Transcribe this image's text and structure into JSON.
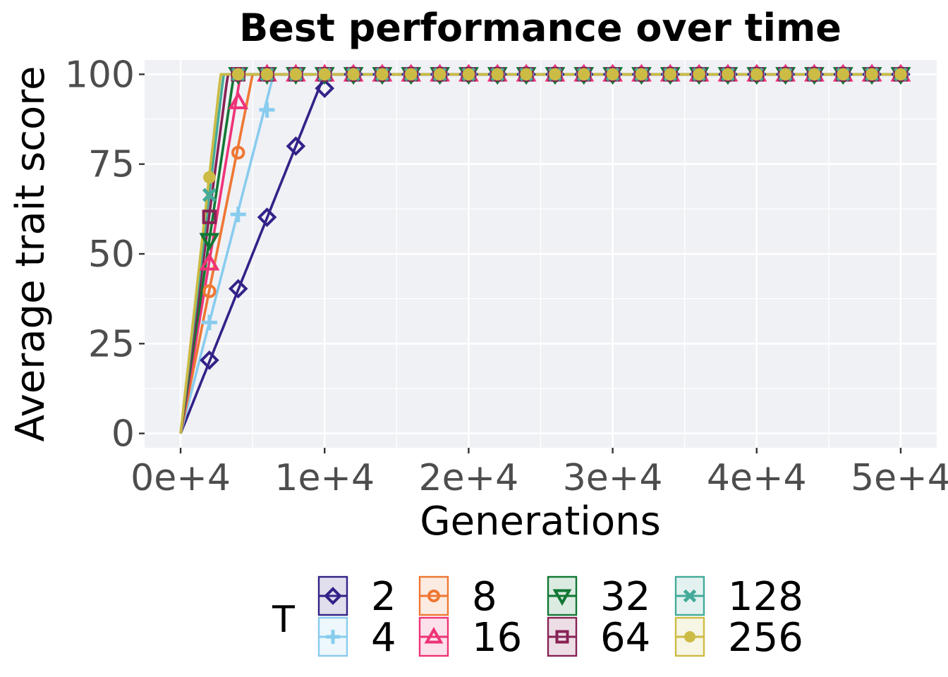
{
  "chart_data": {
    "type": "line",
    "title": "Best performance over time",
    "xlabel": "Generations",
    "ylabel": "Average trait score",
    "xlim": [
      -2500,
      52500
    ],
    "ylim": [
      -4,
      104
    ],
    "x_ticks": [
      0,
      10000,
      20000,
      30000,
      40000,
      50000
    ],
    "x_tick_labels": [
      "0e+4",
      "1e+4",
      "2e+4",
      "3e+4",
      "4e+4",
      "5e+4"
    ],
    "y_ticks": [
      0,
      25,
      50,
      75,
      100
    ],
    "y_tick_labels": [
      "0",
      "25",
      "50",
      "75",
      "100"
    ],
    "grid": true,
    "legend_position": "bottom",
    "legend_title": "T",
    "marker_x": [
      2000,
      4000,
      6000,
      8000,
      10000,
      12000,
      14000,
      16000,
      18000,
      20000,
      22000,
      24000,
      26000,
      28000,
      30000,
      32000,
      34000,
      36000,
      38000,
      40000,
      42000,
      44000,
      46000,
      48000,
      50000
    ],
    "series": [
      {
        "name": "2",
        "color": "#332288",
        "marker": "diamond",
        "rate": 0.01,
        "values": [
          20.4,
          40.3,
          60.2,
          80.0,
          96.1,
          100,
          100,
          100,
          100,
          100,
          100,
          100,
          100,
          100,
          100,
          100,
          100,
          100,
          100,
          100,
          100,
          100,
          100,
          100,
          100
        ]
      },
      {
        "name": "4",
        "color": "#88ccee",
        "marker": "plus",
        "rate": 0.0155,
        "values": [
          30.9,
          61.0,
          90.1,
          100,
          100,
          100,
          100,
          100,
          100,
          100,
          100,
          100,
          100,
          100,
          100,
          100,
          100,
          100,
          100,
          100,
          100,
          100,
          100,
          100,
          100
        ]
      },
      {
        "name": "8",
        "color": "#ee7733",
        "marker": "circle-open",
        "rate": 0.02,
        "values": [
          39.6,
          78.2,
          100,
          100,
          100,
          100,
          100,
          100,
          100,
          100,
          100,
          100,
          100,
          100,
          100,
          100,
          100,
          100,
          100,
          100,
          100,
          100,
          100,
          100,
          100
        ]
      },
      {
        "name": "16",
        "color": "#ee3377",
        "marker": "triangle-up",
        "rate": 0.024,
        "values": [
          47.4,
          92.3,
          100,
          100,
          100,
          100,
          100,
          100,
          100,
          100,
          100,
          100,
          100,
          100,
          100,
          100,
          100,
          100,
          100,
          100,
          100,
          100,
          100,
          100,
          100
        ]
      },
      {
        "name": "32",
        "color": "#117733",
        "marker": "triangle-down",
        "rate": 0.027,
        "values": [
          53.8,
          100,
          100,
          100,
          100,
          100,
          100,
          100,
          100,
          100,
          100,
          100,
          100,
          100,
          100,
          100,
          100,
          100,
          100,
          100,
          100,
          100,
          100,
          100,
          100
        ]
      },
      {
        "name": "64",
        "color": "#882255",
        "marker": "square",
        "rate": 0.0305,
        "values": [
          60.3,
          100,
          100,
          100,
          100,
          100,
          100,
          100,
          100,
          100,
          100,
          100,
          100,
          100,
          100,
          100,
          100,
          100,
          100,
          100,
          100,
          100,
          100,
          100,
          100
        ]
      },
      {
        "name": "128",
        "color": "#44aa99",
        "marker": "cross",
        "rate": 0.0335,
        "values": [
          66.4,
          100,
          100,
          100,
          100,
          100,
          100,
          100,
          100,
          100,
          100,
          100,
          100,
          100,
          100,
          100,
          100,
          100,
          100,
          100,
          100,
          100,
          100,
          100,
          100
        ]
      },
      {
        "name": "256",
        "color": "#ccbb44",
        "marker": "dot",
        "rate": 0.036,
        "values": [
          71.3,
          100,
          100,
          100,
          100,
          100,
          100,
          100,
          100,
          100,
          100,
          100,
          100,
          100,
          100,
          100,
          100,
          100,
          100,
          100,
          100,
          100,
          100,
          100,
          100
        ]
      }
    ]
  }
}
